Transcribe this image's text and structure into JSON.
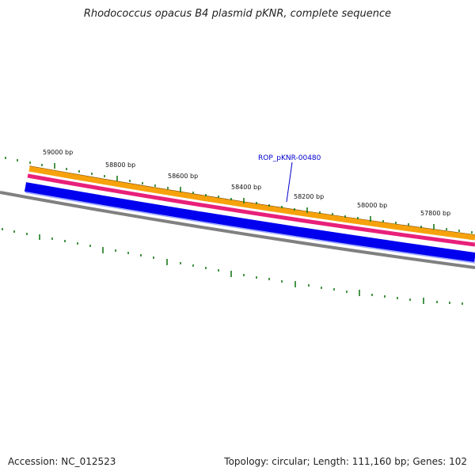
{
  "header": {
    "title": "Rhodococcus opacus B4 plasmid pKNR, complete sequence"
  },
  "footer": {
    "accession": "Accession: NC_012523",
    "summary": "Topology: circular; Length: 111,160 bp; Genes: 102"
  },
  "map": {
    "ticks": [
      {
        "label": "59000 bp"
      },
      {
        "label": "58800 bp"
      },
      {
        "label": "58600 bp"
      },
      {
        "label": "58400 bp"
      },
      {
        "label": "58200 bp"
      },
      {
        "label": "58000 bp"
      },
      {
        "label": "57800 bp"
      }
    ],
    "gene_label": "ROP_pKNR-00480",
    "colors": {
      "orange_band": "#f7a20c",
      "magenta_band": "#e8207a",
      "blue_band": "#0000ee",
      "backbone": "#808080",
      "ticks": "#1a7a1a",
      "gene_label": "#0000cc"
    }
  }
}
